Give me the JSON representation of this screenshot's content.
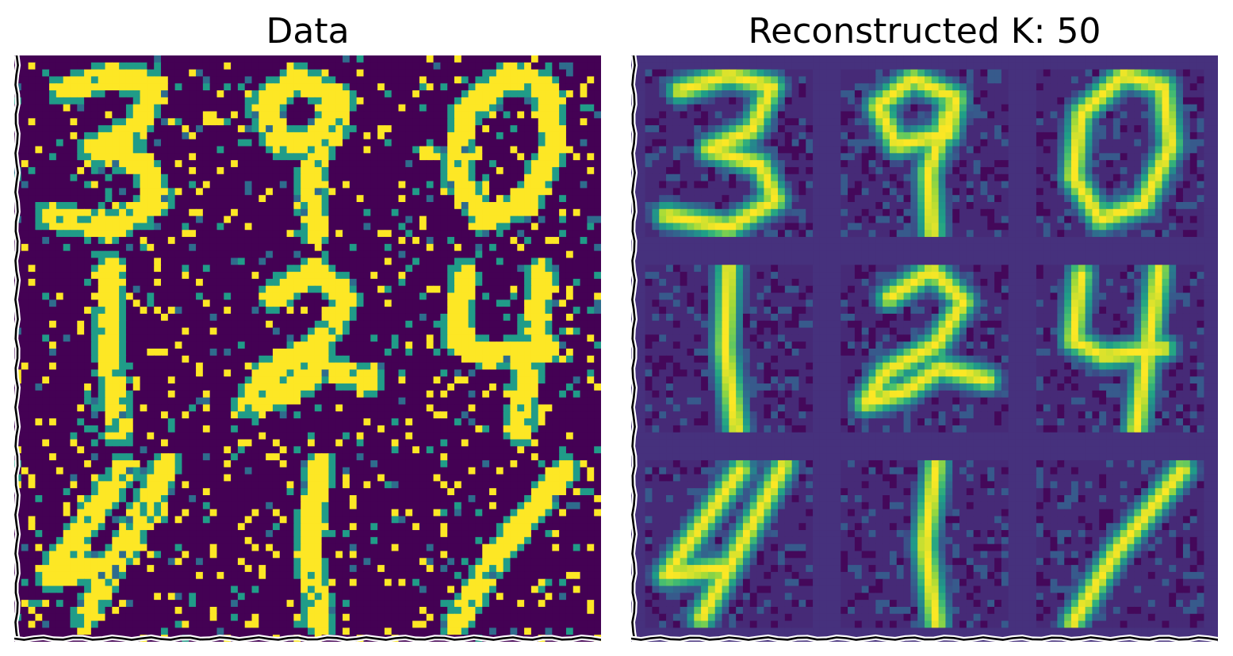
{
  "panels": [
    {
      "title": "Data",
      "kind": "noisy"
    },
    {
      "title": "Reconstructed K: 50",
      "kind": "reconstructed"
    }
  ],
  "grid": {
    "rows": 3,
    "cols": 3,
    "digits": [
      "3",
      "9",
      "0",
      "1",
      "2",
      "4",
      "4",
      "1",
      "1"
    ]
  },
  "colormap": {
    "name": "viridis",
    "stops": [
      "#440154",
      "#46327e",
      "#365c8d",
      "#277f8e",
      "#1fa187",
      "#4ac16d",
      "#a0da39",
      "#fde725"
    ]
  }
}
